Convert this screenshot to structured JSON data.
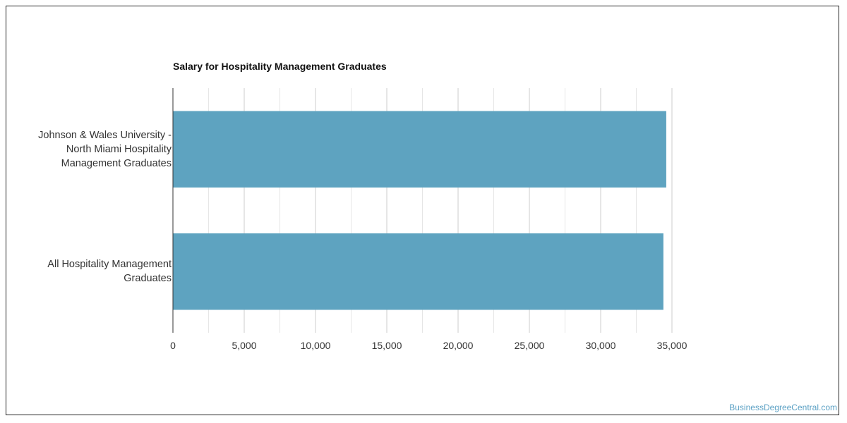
{
  "chart_data": {
    "type": "bar",
    "orientation": "horizontal",
    "title": "Salary for Hospitality Management Graduates",
    "categories": [
      "Johnson & Wales University - North Miami Hospitality Management Graduates",
      "All Hospitality Management Graduates"
    ],
    "category_lines": [
      [
        "Johnson & Wales University -",
        "North Miami Hospitality",
        "Management Graduates"
      ],
      [
        "All Hospitality Management",
        "Graduates"
      ]
    ],
    "values": [
      34600,
      34400
    ],
    "xlabel": "",
    "ylabel": "",
    "xlim": [
      0,
      35000
    ],
    "x_ticks": [
      0,
      5000,
      10000,
      15000,
      20000,
      25000,
      30000,
      35000
    ],
    "x_tick_labels": [
      "0",
      "5,000",
      "10,000",
      "15,000",
      "20,000",
      "25,000",
      "30,000",
      "35,000"
    ],
    "grid": true,
    "bar_color": "#5ea3c0",
    "legend": "none"
  },
  "footer": {
    "watermark": "BusinessDegreeCentral.com"
  },
  "colors": {
    "watermark": "#5aa0c4",
    "grid_major": "#cccccc",
    "grid_minor": "#e6e6e6",
    "axis": "#333333"
  }
}
